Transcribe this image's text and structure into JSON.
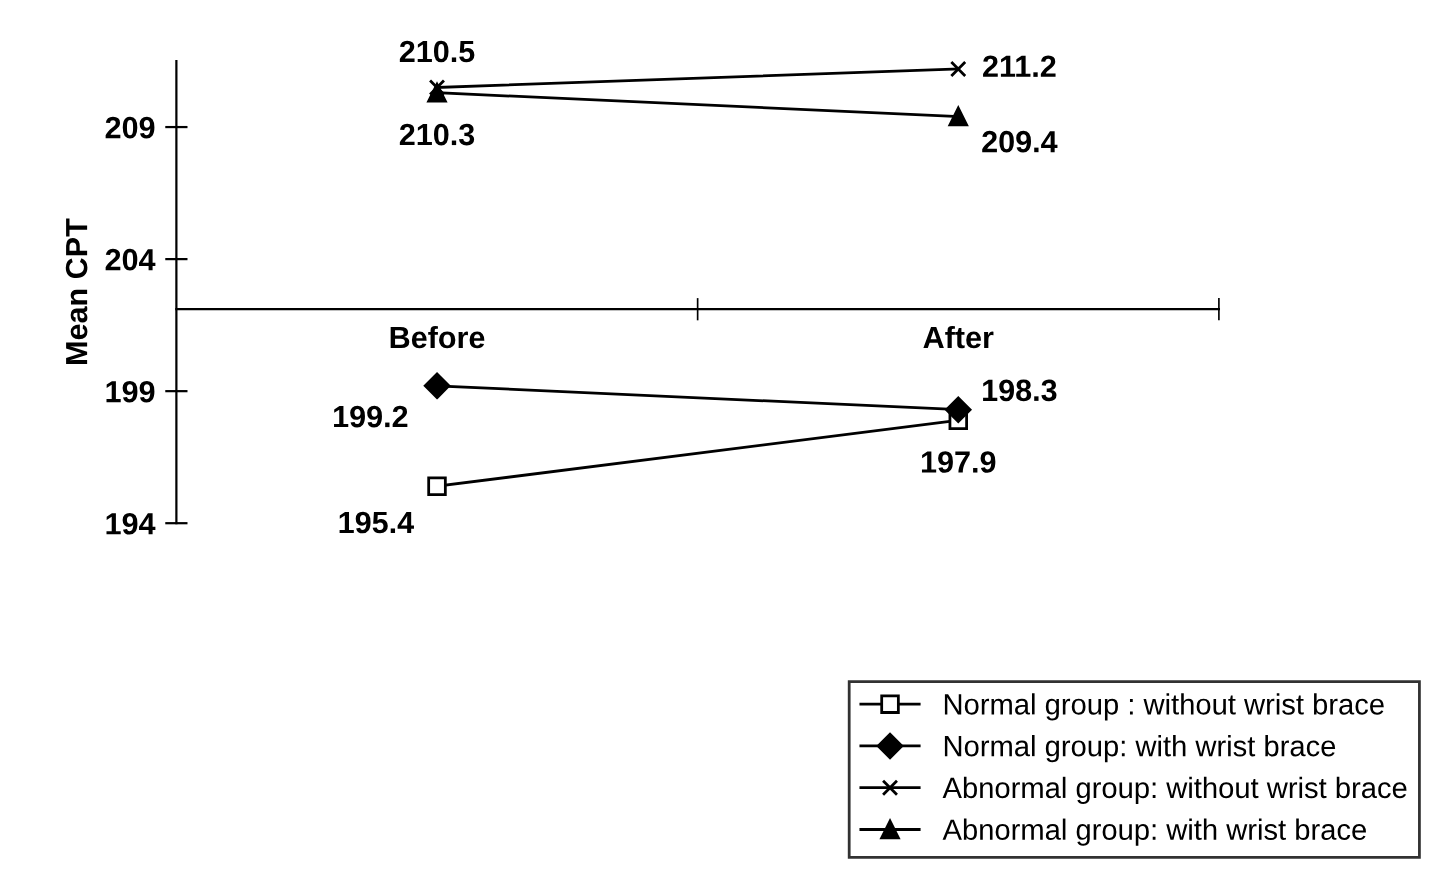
{
  "chart_data": {
    "type": "line",
    "ylabel": "Mean CPT",
    "categories": [
      "Before",
      "After"
    ],
    "series": [
      {
        "name": "Normal group : without wrist brace",
        "color": "#000000",
        "marker": "square",
        "values": [
          195.4,
          197.9
        ]
      },
      {
        "name": "Normal group: with wrist brace",
        "color": "#000000",
        "marker": "diamond",
        "values": [
          199.2,
          198.3
        ]
      },
      {
        "name": "Abnormal group: without wrist brace",
        "color": "#000000",
        "marker": "cross",
        "values": [
          210.5,
          211.2
        ]
      },
      {
        "name": "Abnormal group: with wrist brace",
        "color": "#000000",
        "marker": "triangle",
        "values": [
          210.3,
          209.4
        ]
      }
    ],
    "ylim": [
      194,
      211.5
    ],
    "yticks": [
      194,
      199,
      204,
      209
    ],
    "data_labels": true,
    "grid": false,
    "legend": "bottom right",
    "line_style": "solid"
  }
}
